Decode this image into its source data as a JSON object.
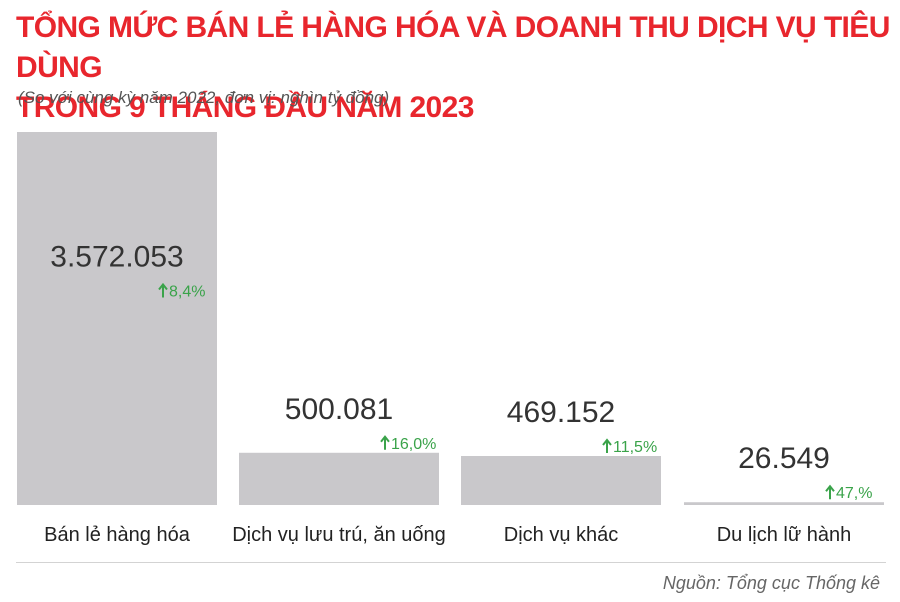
{
  "title_line1": "TỔNG MỨC BÁN LẺ HÀNG HÓA VÀ DOANH THU DỊCH VỤ TIÊU DÙNG",
  "title_line2": "TRONG 9 THÁNG ĐẦU NĂM 2023",
  "subtitle": "(So với cùng kỳ năm 2022, đơn vị: nghìn tỷ đồng)",
  "source": "Nguồn: Tổng cục Thống kê",
  "colors": {
    "title": "#e8262d",
    "bar": "#c9c8cb",
    "growth": "#3aa34a",
    "value_text": "#333333"
  },
  "chart_data": {
    "type": "bar",
    "title": "TỔNG MỨC BÁN LẺ HÀNG HÓA VÀ DOANH THU DỊCH VỤ TIÊU DÙNG TRONG 9 THÁNG ĐẦU NĂM 2023",
    "subtitle": "(So với cùng kỳ năm 2022, đơn vị: nghìn tỷ đồng)",
    "categories": [
      "Bán lẻ hàng hóa",
      "Dịch vụ lưu trú, ăn uống",
      "Dịch vụ khác",
      "Du lịch lữ hành"
    ],
    "values": [
      3572.053,
      500.081,
      469.152,
      26.549
    ],
    "value_labels": [
      "3.572.053",
      "500.081",
      "469.152",
      "26.549"
    ],
    "growth_labels": [
      "8,4%",
      "16,0%",
      "11,5%",
      "47,%"
    ],
    "growth_icon": "arrow-up-icon",
    "ylim": [
      0,
      3572.053
    ],
    "grid": false,
    "legend": "none"
  }
}
